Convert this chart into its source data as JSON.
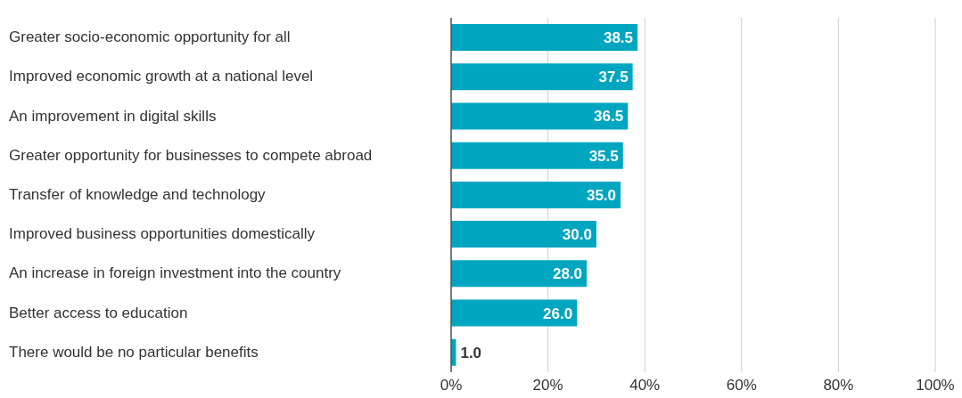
{
  "chart_data": {
    "type": "bar",
    "orientation": "horizontal",
    "categories": [
      "Greater socio-economic opportunity for all",
      "Improved economic growth at a national level",
      "An improvement in digital skills",
      "Greater opportunity for businesses to compete abroad",
      "Transfer of knowledge and technology",
      "Improved business opportunities domestically",
      "An increase in foreign investment into the country",
      "Better access to education",
      "There would be no particular benefits"
    ],
    "values": [
      38.5,
      37.5,
      36.5,
      35.5,
      35.0,
      30.0,
      28.0,
      26.0,
      1.0
    ],
    "value_labels": [
      "38.5",
      "37.5",
      "36.5",
      "35.5",
      "35.0",
      "30.0",
      "28.0",
      "26.0",
      "1.0"
    ],
    "color": "#00a6c0",
    "xlim": [
      0,
      100
    ],
    "xticks": [
      {
        "value": 0,
        "label": "0%"
      },
      {
        "value": 20,
        "label": "20%"
      },
      {
        "value": 40,
        "label": "40%"
      },
      {
        "value": 60,
        "label": "60%"
      },
      {
        "value": 80,
        "label": "80%"
      },
      {
        "value": 100,
        "label": "100%"
      }
    ],
    "grid": "x",
    "legend": false
  }
}
